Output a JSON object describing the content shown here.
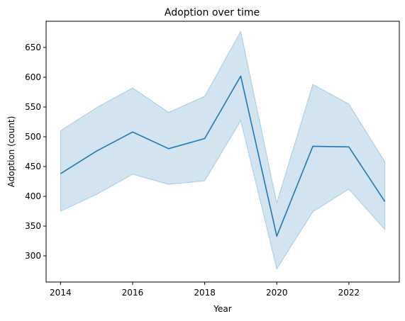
{
  "chart_data": {
    "type": "line",
    "title": "Adoption over time",
    "xlabel": "Year",
    "ylabel": "Adoption (count)",
    "xlim": [
      2013.6,
      2023.4
    ],
    "ylim": [
      256,
      694
    ],
    "x_ticks": [
      2014,
      2016,
      2018,
      2020,
      2022
    ],
    "y_ticks": [
      300,
      350,
      400,
      450,
      500,
      550,
      600,
      650
    ],
    "grid": false,
    "legend": "none",
    "colors": {
      "line": "#1f77b4",
      "band": "#1f77b4",
      "band_opacity": 0.2
    },
    "series": [
      {
        "x": [
          2014,
          2015,
          2016,
          2017,
          2018,
          2019,
          2020,
          2021,
          2022,
          2023
        ],
        "values": [
          438,
          476,
          508,
          480,
          497,
          602,
          333,
          484,
          483,
          391
        ],
        "ci_low": [
          375,
          403,
          437,
          420,
          426,
          527,
          278,
          374,
          412,
          344
        ],
        "ci_high": [
          510,
          549,
          582,
          541,
          568,
          677,
          389,
          588,
          555,
          458
        ]
      }
    ]
  }
}
